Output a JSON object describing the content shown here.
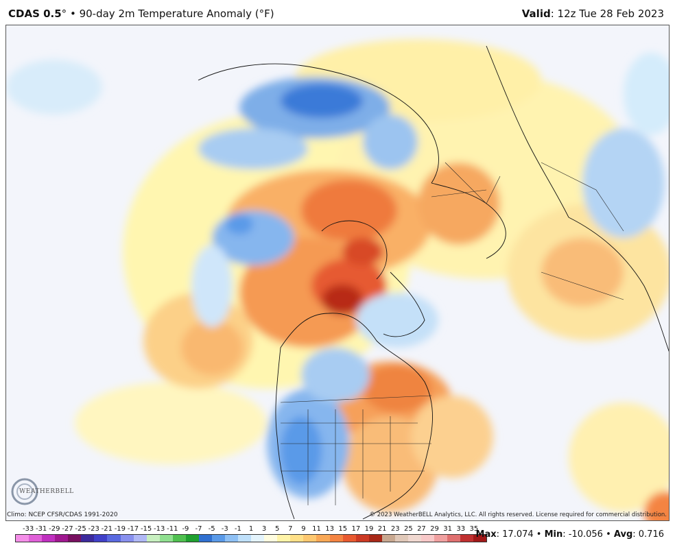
{
  "header": {
    "model": "CDAS 0.5",
    "degree": "°",
    "bullet": "•",
    "product": "90-day 2m Temperature Anomaly (°F)",
    "valid_label": "Valid",
    "valid_time": ": 12z Tue 28 Feb 2023"
  },
  "footer": {
    "climo": "Climo: NCEP CFSR/CDAS 1991-2020",
    "copyright": "© 2023 WeatherBELL Analytics, LLC. All rights reserved. License required for commercial distribution.",
    "logo_text": "WEATHERBELL"
  },
  "colorbar": {
    "labels": [
      "-33",
      "-31",
      "-29",
      "-27",
      "-25",
      "-23",
      "-21",
      "-19",
      "-17",
      "-15",
      "-13",
      "-11",
      "-9",
      "-7",
      "-5",
      "-3",
      "-1",
      "1",
      "3",
      "5",
      "7",
      "9",
      "11",
      "13",
      "15",
      "17",
      "19",
      "21",
      "23",
      "25",
      "27",
      "29",
      "31",
      "33",
      "35"
    ],
    "colors": [
      "#f48ee8",
      "#e060d8",
      "#c030c0",
      "#a01890",
      "#781060",
      "#3c2a9c",
      "#4040c8",
      "#5a6ae0",
      "#8890ee",
      "#b0b8f5",
      "#c8f0c0",
      "#90e090",
      "#50c050",
      "#20a030",
      "#3070d0",
      "#5a9ae8",
      "#8ec0f4",
      "#bfe0fa",
      "#e4f4fc",
      "#fffde0",
      "#fff4a8",
      "#ffe088",
      "#fdc870",
      "#f9a856",
      "#f48442",
      "#e85a30",
      "#cc3a24",
      "#a82818",
      "#c8a890",
      "#e0c8b8",
      "#f0d8d0",
      "#f8c8c8",
      "#f0a0a0",
      "#e07070",
      "#c03030",
      "#a01818"
    ]
  },
  "stats": {
    "max_label": "Max",
    "max_value": ": 17.074",
    "sep1": " • ",
    "min_label": "Min",
    "min_value": ": -10.056",
    "sep2": " • ",
    "avg_label": "Avg",
    "avg_value": ": 0.716"
  }
}
